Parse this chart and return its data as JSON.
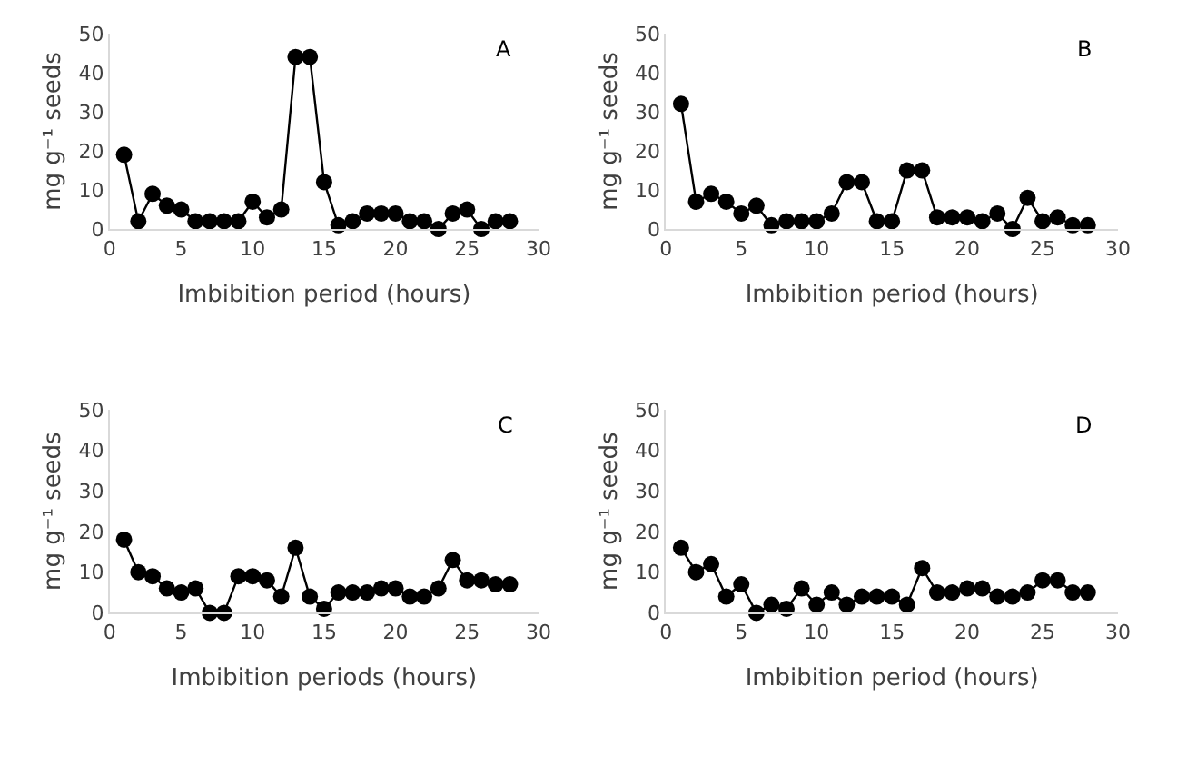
{
  "chart_data": [
    {
      "type": "line",
      "title": "A",
      "xlabel": "Imbibition period (hours)",
      "ylabel": "mg g⁻¹ seeds",
      "x": [
        1,
        2,
        3,
        4,
        5,
        6,
        7,
        8,
        9,
        10,
        11,
        12,
        13,
        14,
        15,
        16,
        17,
        18,
        19,
        20,
        21,
        22,
        23,
        24,
        25,
        26,
        27,
        28
      ],
      "xlim": [
        0,
        30
      ],
      "xticks": [
        0,
        5,
        10,
        15,
        20,
        25,
        30
      ],
      "ylim": [
        0,
        50
      ],
      "yticks": [
        0,
        10,
        20,
        30,
        40,
        50
      ],
      "marker": "circle",
      "line_style": "solid",
      "series": [
        {
          "color": "#000000",
          "values": [
            19,
            2,
            9,
            6,
            5,
            2,
            2,
            2,
            2,
            7,
            3,
            5,
            44,
            44,
            12,
            1,
            2,
            4,
            4,
            4,
            2,
            2,
            0,
            4,
            5,
            0,
            2,
            2
          ]
        }
      ]
    },
    {
      "type": "line",
      "title": "B",
      "xlabel": "Imbibition period (hours)",
      "ylabel": "mg g⁻¹ seeds",
      "x": [
        1,
        2,
        3,
        4,
        5,
        6,
        7,
        8,
        9,
        10,
        11,
        12,
        13,
        14,
        15,
        16,
        17,
        18,
        19,
        20,
        21,
        22,
        23,
        24,
        25,
        26,
        27,
        28
      ],
      "xlim": [
        0,
        30
      ],
      "xticks": [
        0,
        5,
        10,
        15,
        20,
        25,
        30
      ],
      "ylim": [
        0,
        50
      ],
      "yticks": [
        0,
        10,
        20,
        30,
        40,
        50
      ],
      "marker": "circle",
      "line_style": "solid",
      "series": [
        {
          "color": "#000000",
          "values": [
            32,
            7,
            9,
            7,
            4,
            6,
            1,
            2,
            2,
            2,
            4,
            12,
            12,
            2,
            2,
            15,
            15,
            3,
            3,
            3,
            2,
            4,
            0,
            8,
            2,
            3,
            1,
            1
          ]
        }
      ]
    },
    {
      "type": "line",
      "title": "C",
      "xlabel": "Imbibition periods (hours)",
      "ylabel": "mg g⁻¹ seeds",
      "x": [
        1,
        2,
        3,
        4,
        5,
        6,
        7,
        8,
        9,
        10,
        11,
        12,
        13,
        14,
        15,
        16,
        17,
        18,
        19,
        20,
        21,
        22,
        23,
        24,
        25,
        26,
        27,
        28
      ],
      "xlim": [
        0,
        30
      ],
      "xticks": [
        0,
        5,
        10,
        15,
        20,
        25,
        30
      ],
      "ylim": [
        0,
        50
      ],
      "yticks": [
        0,
        10,
        20,
        30,
        40,
        50
      ],
      "marker": "circle",
      "line_style": "solid",
      "series": [
        {
          "color": "#000000",
          "values": [
            18,
            10,
            9,
            6,
            5,
            6,
            0,
            0,
            9,
            9,
            8,
            4,
            16,
            4,
            1,
            5,
            5,
            5,
            6,
            6,
            4,
            4,
            6,
            13,
            8,
            8,
            7,
            7
          ]
        }
      ]
    },
    {
      "type": "line",
      "title": "D",
      "xlabel": "Imbibition period (hours)",
      "ylabel": "mg g⁻¹ seeds",
      "x": [
        1,
        2,
        3,
        4,
        5,
        6,
        7,
        8,
        9,
        10,
        11,
        12,
        13,
        14,
        15,
        16,
        17,
        18,
        19,
        20,
        21,
        22,
        23,
        24,
        25,
        26,
        27,
        28
      ],
      "xlim": [
        0,
        30
      ],
      "xticks": [
        0,
        5,
        10,
        15,
        20,
        25,
        30
      ],
      "ylim": [
        0,
        50
      ],
      "yticks": [
        0,
        10,
        20,
        30,
        40,
        50
      ],
      "marker": "circle",
      "line_style": "solid",
      "series": [
        {
          "color": "#000000",
          "values": [
            16,
            10,
            12,
            4,
            7,
            0,
            2,
            1,
            6,
            2,
            5,
            2,
            4,
            4,
            4,
            2,
            11,
            5,
            5,
            6,
            6,
            4,
            4,
            5,
            8,
            8,
            5,
            5
          ]
        }
      ]
    }
  ]
}
